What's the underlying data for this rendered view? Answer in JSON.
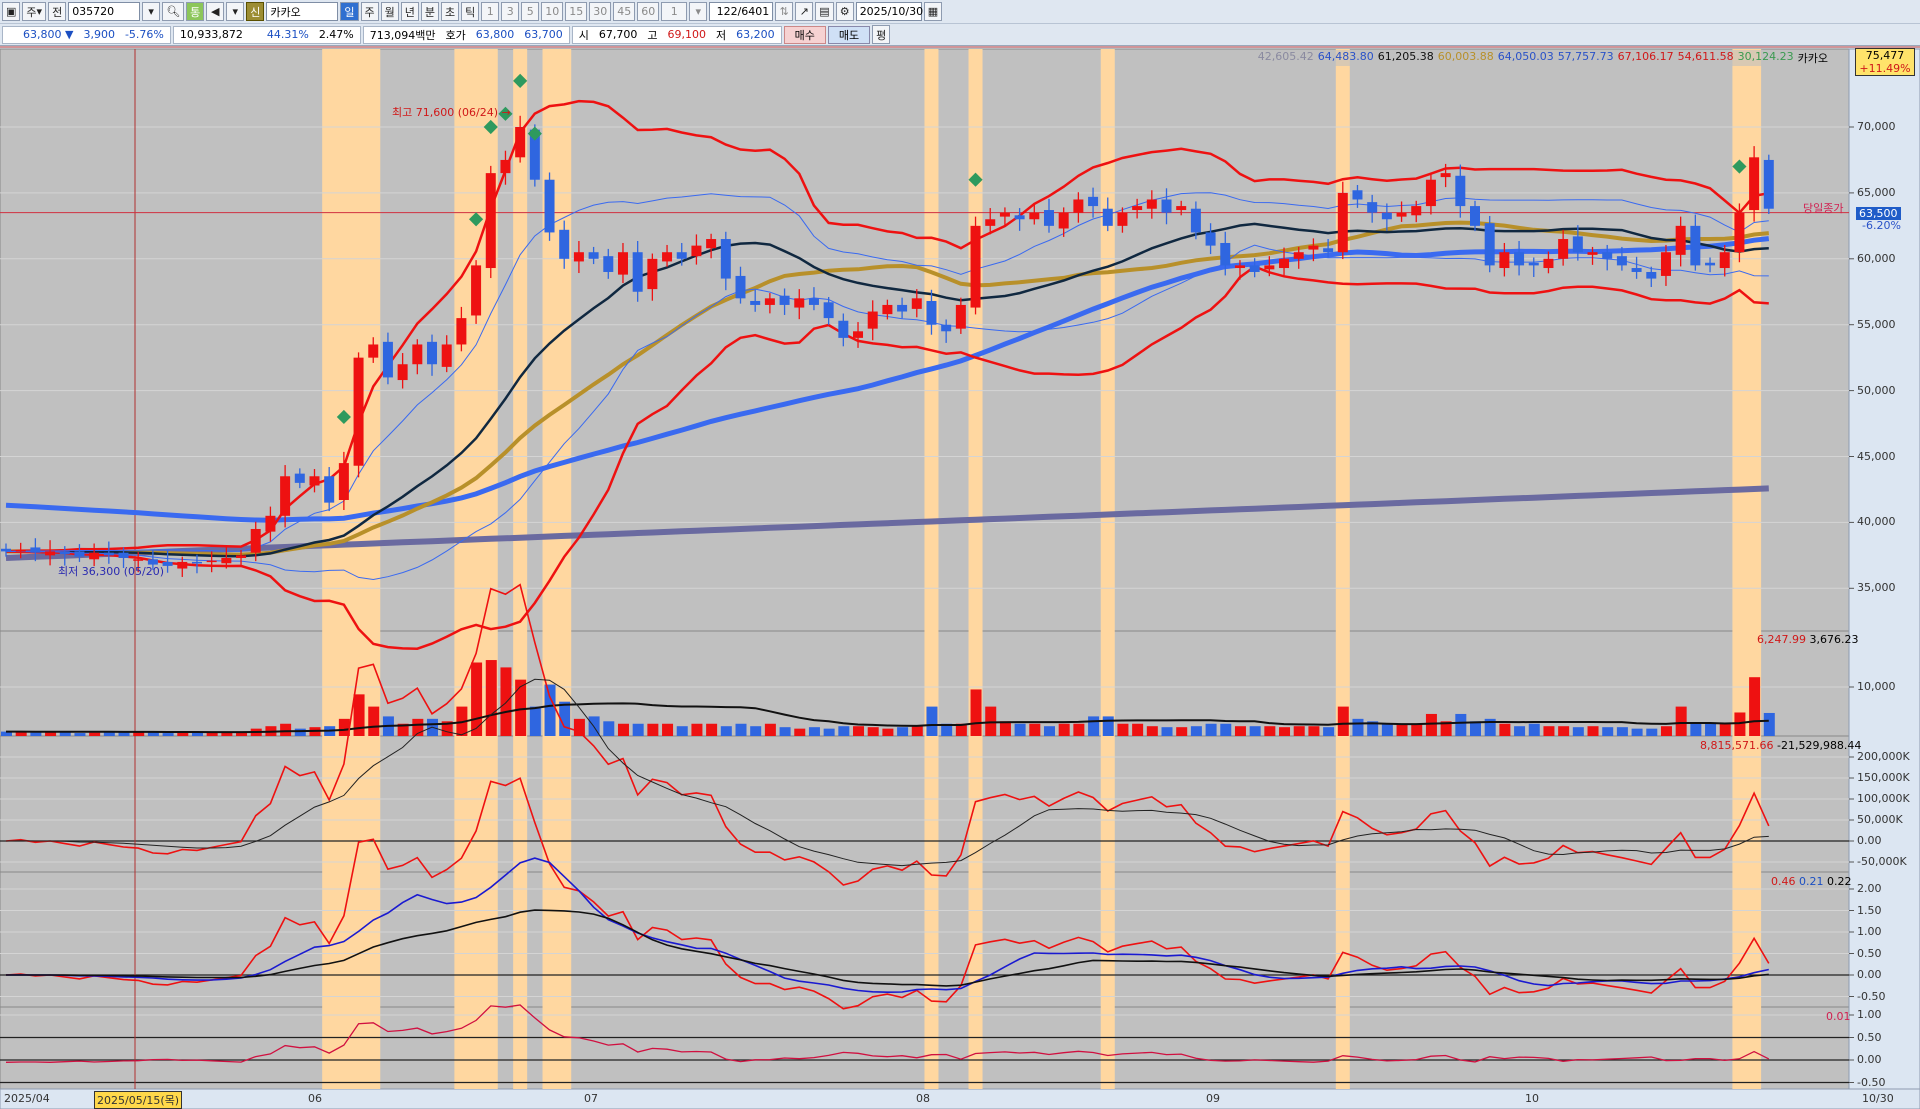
{
  "toolbar": {
    "market": "주",
    "prev": "전",
    "code": "035720",
    "tong": "통",
    "sin": "신",
    "name": "카카오",
    "periods": [
      "일",
      "주",
      "월",
      "년",
      "분",
      "초",
      "틱"
    ],
    "active_period": "일",
    "minutes": [
      "1",
      "3",
      "5",
      "10",
      "15",
      "30",
      "45",
      "60"
    ],
    "count": "1",
    "page": "122/6401",
    "date": "2025/10/30"
  },
  "quote": {
    "price": "63,800 ▼",
    "change": "3,900",
    "pct": "-5.76%",
    "volume": "10,933,872",
    "vol_ratio": "44.31%",
    "turnover": "2.47%",
    "amount": "713,094백만",
    "hoga_label": "호가",
    "ask": "63,800",
    "bid": "63,700",
    "open_label": "시",
    "open": "67,700",
    "high_label": "고",
    "high": "69,100",
    "low_label": "저",
    "low": "63,200",
    "buy": "매수",
    "sell": "매도",
    "eval": "평"
  },
  "legend": {
    "items": [
      {
        "text": "42,605.42",
        "color": "#8a8aa0"
      },
      {
        "text": "64,483.80",
        "color": "#2a52c8"
      },
      {
        "text": "61,205.38",
        "color": "#111111"
      },
      {
        "text": "60,003.88",
        "color": "#b8902a"
      },
      {
        "text": "64,050.03",
        "color": "#2a52c8"
      },
      {
        "text": "57,757.73",
        "color": "#2a52c8"
      },
      {
        "text": "67,106.17",
        "color": "#d01818"
      },
      {
        "text": "54,611.58",
        "color": "#d01818"
      },
      {
        "text": "30,124.23",
        "color": "#3a9a50"
      }
    ],
    "name": "카카오"
  },
  "pricebox": {
    "price": "75,477",
    "pct": "+11.49%"
  },
  "annotations": {
    "high": "최고 71,600 (06/24) →",
    "low": "최저 36,300 (05/20)",
    "close_label": "당일종가",
    "close": "63,500",
    "close_pct": "-6.20%"
  },
  "volume_panel": {
    "v1": "6,247.99",
    "v2": "3,676.23",
    "ticks": [
      "10,000"
    ]
  },
  "ind1": {
    "v1": "8,815,571.66",
    "v2": "-21,529,988.44",
    "ticks": [
      "200,000K",
      "150,000K",
      "100,000K",
      "50,000K",
      "0.00",
      "-50,000K"
    ]
  },
  "ind2": {
    "v1": "0.46",
    "v2": "0.21",
    "v3": "0.22",
    "ticks": [
      "2.00",
      "1.50",
      "1.00",
      "0.50",
      "0.00",
      "-0.50"
    ]
  },
  "ind3": {
    "v1": "0.01",
    "ticks": [
      "1.00",
      "0.50",
      "0.00",
      "-0.50"
    ]
  },
  "price_ticks": [
    "70,000",
    "65,000",
    "60,000",
    "55,000",
    "50,000",
    "45,000",
    "40,000",
    "35,000"
  ],
  "xaxis": {
    "labels": [
      "2025/04",
      "06",
      "07",
      "08",
      "09",
      "10",
      "10/30"
    ],
    "cursor": "2025/05/15(목)"
  },
  "colors": {
    "up": "#ee1111",
    "down": "#2f66e0",
    "band": "#ffd7a0",
    "panel_bg": "#c0c0c0"
  },
  "chart_data": {
    "type": "candlestick",
    "closes": [
      37800,
      37900,
      37700,
      37800,
      37600,
      37400,
      37700,
      37500,
      37300,
      37200,
      36800,
      36700,
      37000,
      36900,
      37100,
      37300,
      37500,
      39500,
      40500,
      43500,
      43000,
      43500,
      41500,
      44500,
      52500,
      53500,
      51000,
      52000,
      53500,
      52000,
      53500,
      55500,
      59500,
      66500,
      67500,
      70000,
      66000,
      62000,
      60000,
      60500,
      60000,
      59000,
      60500,
      57500,
      60000,
      60500,
      60000,
      61000,
      61500,
      58500,
      57000,
      56500,
      57000,
      56500,
      57000,
      56500,
      55500,
      54000,
      54500,
      56000,
      56500,
      56000,
      57000,
      55000,
      54500,
      56500,
      62500,
      63000,
      63500,
      63000,
      63500,
      62500,
      63500,
      64500,
      64000,
      62500,
      63500,
      64000,
      64500,
      63500,
      64000,
      62000,
      61000,
      59500,
      59500,
      59000,
      59500,
      60000,
      60500,
      61000,
      60500,
      65000,
      64500,
      63500,
      63000,
      63500,
      64000,
      66000,
      66500,
      64000,
      62500,
      59500,
      60500,
      59500,
      59500,
      60000,
      61500,
      60500,
      60500,
      60000,
      59500,
      59000,
      58500,
      60500,
      62500,
      59500,
      59500,
      60500,
      63500,
      67700,
      63800
    ],
    "volumes": [
      900,
      800,
      700,
      900,
      800,
      600,
      700,
      800,
      700,
      900,
      800,
      600,
      700,
      900,
      800,
      700,
      900,
      1500,
      2000,
      2500,
      1500,
      1800,
      2000,
      3500,
      8500,
      6000,
      4000,
      2500,
      3500,
      3500,
      3000,
      6000,
      15000,
      15500,
      14000,
      11500,
      6000,
      10500,
      7000,
      3500,
      4000,
      3000,
      2500,
      2500,
      2500,
      2500,
      2000,
      2500,
      2500,
      2000,
      2500,
      2000,
      2500,
      1800,
      1500,
      1800,
      1500,
      2000,
      2000,
      1800,
      1500,
      1800,
      2000,
      6000,
      2500,
      2500,
      9500,
      6000,
      3000,
      2500,
      2500,
      2000,
      2500,
      2500,
      4000,
      4000,
      2500,
      2500,
      2000,
      1800,
      1800,
      2000,
      2500,
      2500,
      2000,
      2000,
      2000,
      1800,
      2000,
      2000,
      1800,
      6000,
      3500,
      3000,
      2500,
      2500,
      2500,
      4500,
      3000,
      4500,
      3000,
      3500,
      2500,
      2000,
      2500,
      2000,
      2000,
      1800,
      2000,
      1800,
      1800,
      1500,
      1500,
      2000,
      6000,
      2500,
      2500,
      2500,
      4800,
      12000,
      4700
    ],
    "signal_ranges": [
      [
        22,
        25
      ],
      [
        31,
        33
      ],
      [
        35,
        35
      ],
      [
        37,
        38
      ],
      [
        63,
        63
      ],
      [
        66,
        66
      ],
      [
        75,
        75
      ],
      [
        91,
        91
      ],
      [
        118,
        119
      ]
    ],
    "signals": [
      23,
      32,
      33,
      34,
      35,
      36,
      66,
      118
    ],
    "price_range": [
      33000,
      75000
    ]
  }
}
